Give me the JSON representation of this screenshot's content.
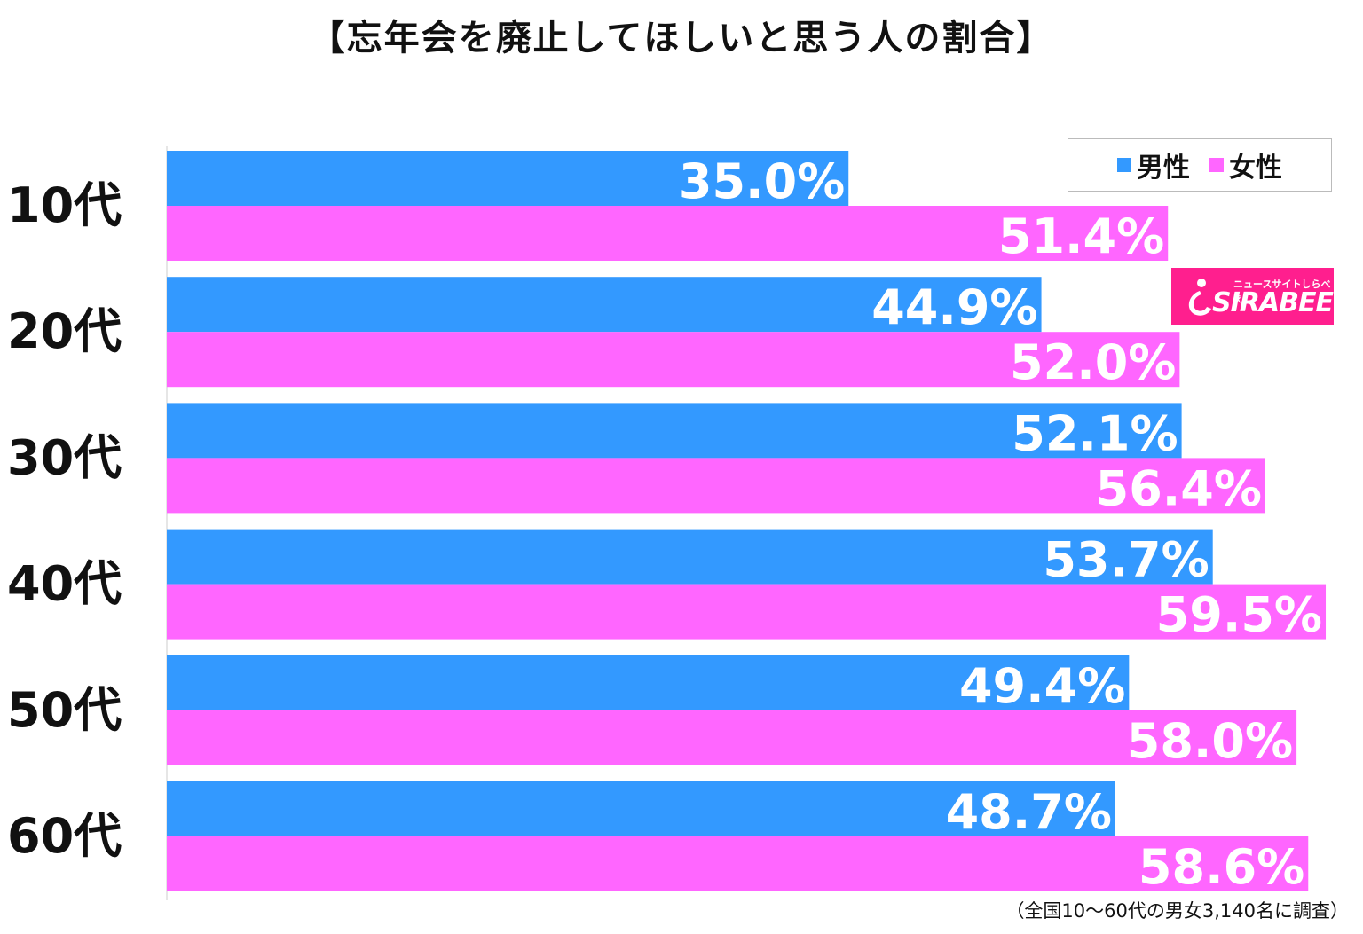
{
  "chart_data": {
    "type": "bar",
    "orientation": "horizontal",
    "title": "【忘年会を廃止してほしいと思う人の割合】",
    "categories": [
      "10代",
      "20代",
      "30代",
      "40代",
      "50代",
      "60代"
    ],
    "series": [
      {
        "name": "男性",
        "color": "#3399ff",
        "values": [
          35.0,
          44.9,
          52.1,
          53.7,
          49.4,
          48.7
        ],
        "labels": [
          "35.0%",
          "44.9%",
          "52.1%",
          "53.7%",
          "49.4%",
          "48.7%"
        ]
      },
      {
        "name": "女性",
        "color": "#ff66ff",
        "values": [
          51.4,
          52.0,
          56.4,
          59.5,
          58.0,
          58.6
        ],
        "labels": [
          "51.4%",
          "52.0%",
          "56.4%",
          "59.5%",
          "58.0%",
          "58.6%"
        ]
      }
    ],
    "xlim": [
      0,
      60
    ],
    "grid": false,
    "legend_position": "top-right",
    "footnote": "（全国10～60代の男女3,140名に調査）"
  },
  "logo": {
    "subtitle": "ニュースサイトしらべぇ",
    "name": "SIRABEE",
    "color": "#ff1f8e"
  }
}
